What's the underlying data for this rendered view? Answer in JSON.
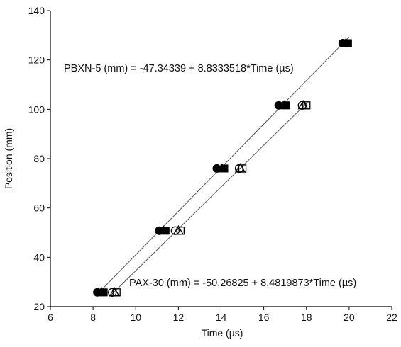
{
  "chart_data": {
    "type": "scatter",
    "title": "",
    "xlabel": "Time (µs)",
    "ylabel": "Position (mm)",
    "xlim": [
      6,
      22
    ],
    "ylim": [
      20,
      140
    ],
    "xticks": [
      6,
      8,
      10,
      12,
      14,
      16,
      18,
      20,
      22
    ],
    "yticks": [
      20,
      40,
      60,
      80,
      100,
      120,
      140
    ],
    "grid": false,
    "series": [
      {
        "name": "PBXN-5",
        "points": [
          {
            "marker": "circle",
            "filled": true,
            "x": 8.2,
            "y": 25.8
          },
          {
            "marker": "circle",
            "filled": true,
            "x": 11.1,
            "y": 50.8
          },
          {
            "marker": "circle",
            "filled": true,
            "x": 13.8,
            "y": 76.0
          },
          {
            "marker": "circle",
            "filled": true,
            "x": 16.7,
            "y": 101.6
          },
          {
            "marker": "circle",
            "filled": true,
            "x": 19.7,
            "y": 126.8
          },
          {
            "marker": "triangle",
            "filled": true,
            "x": 8.4,
            "y": 25.8
          },
          {
            "marker": "triangle",
            "filled": true,
            "x": 11.3,
            "y": 50.8
          },
          {
            "marker": "triangle",
            "filled": true,
            "x": 14.05,
            "y": 76.0
          },
          {
            "marker": "triangle",
            "filled": true,
            "x": 16.95,
            "y": 101.6
          },
          {
            "marker": "triangle",
            "filled": true,
            "x": 19.85,
            "y": 126.8
          },
          {
            "marker": "square",
            "filled": true,
            "x": 8.5,
            "y": 25.8
          },
          {
            "marker": "square",
            "filled": true,
            "x": 11.4,
            "y": 50.8
          },
          {
            "marker": "square",
            "filled": true,
            "x": 14.15,
            "y": 76.0
          },
          {
            "marker": "square",
            "filled": true,
            "x": 17.05,
            "y": 101.6
          },
          {
            "marker": "square",
            "filled": true,
            "x": 19.95,
            "y": 126.8
          }
        ],
        "fit": {
          "intercept": -47.34339,
          "slope": 8.8333518
        }
      },
      {
        "name": "PAX-30",
        "points": [
          {
            "marker": "circle",
            "filled": false,
            "x": 8.9,
            "y": 25.8
          },
          {
            "marker": "circle",
            "filled": false,
            "x": 11.85,
            "y": 50.8
          },
          {
            "marker": "circle",
            "filled": false,
            "x": 14.85,
            "y": 76.0
          },
          {
            "marker": "circle",
            "filled": false,
            "x": 17.8,
            "y": 101.6
          },
          {
            "marker": "triangle",
            "filled": false,
            "x": 9.0,
            "y": 25.8
          },
          {
            "marker": "triangle",
            "filled": false,
            "x": 12.0,
            "y": 50.8
          },
          {
            "marker": "triangle",
            "filled": false,
            "x": 14.9,
            "y": 76.0
          },
          {
            "marker": "triangle",
            "filled": false,
            "x": 17.85,
            "y": 101.6
          },
          {
            "marker": "square",
            "filled": false,
            "x": 9.1,
            "y": 25.8
          },
          {
            "marker": "square",
            "filled": false,
            "x": 12.1,
            "y": 50.8
          },
          {
            "marker": "square",
            "filled": false,
            "x": 15.0,
            "y": 76.0
          },
          {
            "marker": "square",
            "filled": false,
            "x": 18.0,
            "y": 101.6
          }
        ],
        "fit": {
          "intercept": -50.26825,
          "slope": 8.4819873
        }
      }
    ],
    "annotations": [
      "PBXN-5 (mm) = -47.34339 + 8.8333518*Time  (µs)",
      "PAX-30 (mm) = -50.26825 + 8.4819873*Time  (µs)"
    ]
  }
}
